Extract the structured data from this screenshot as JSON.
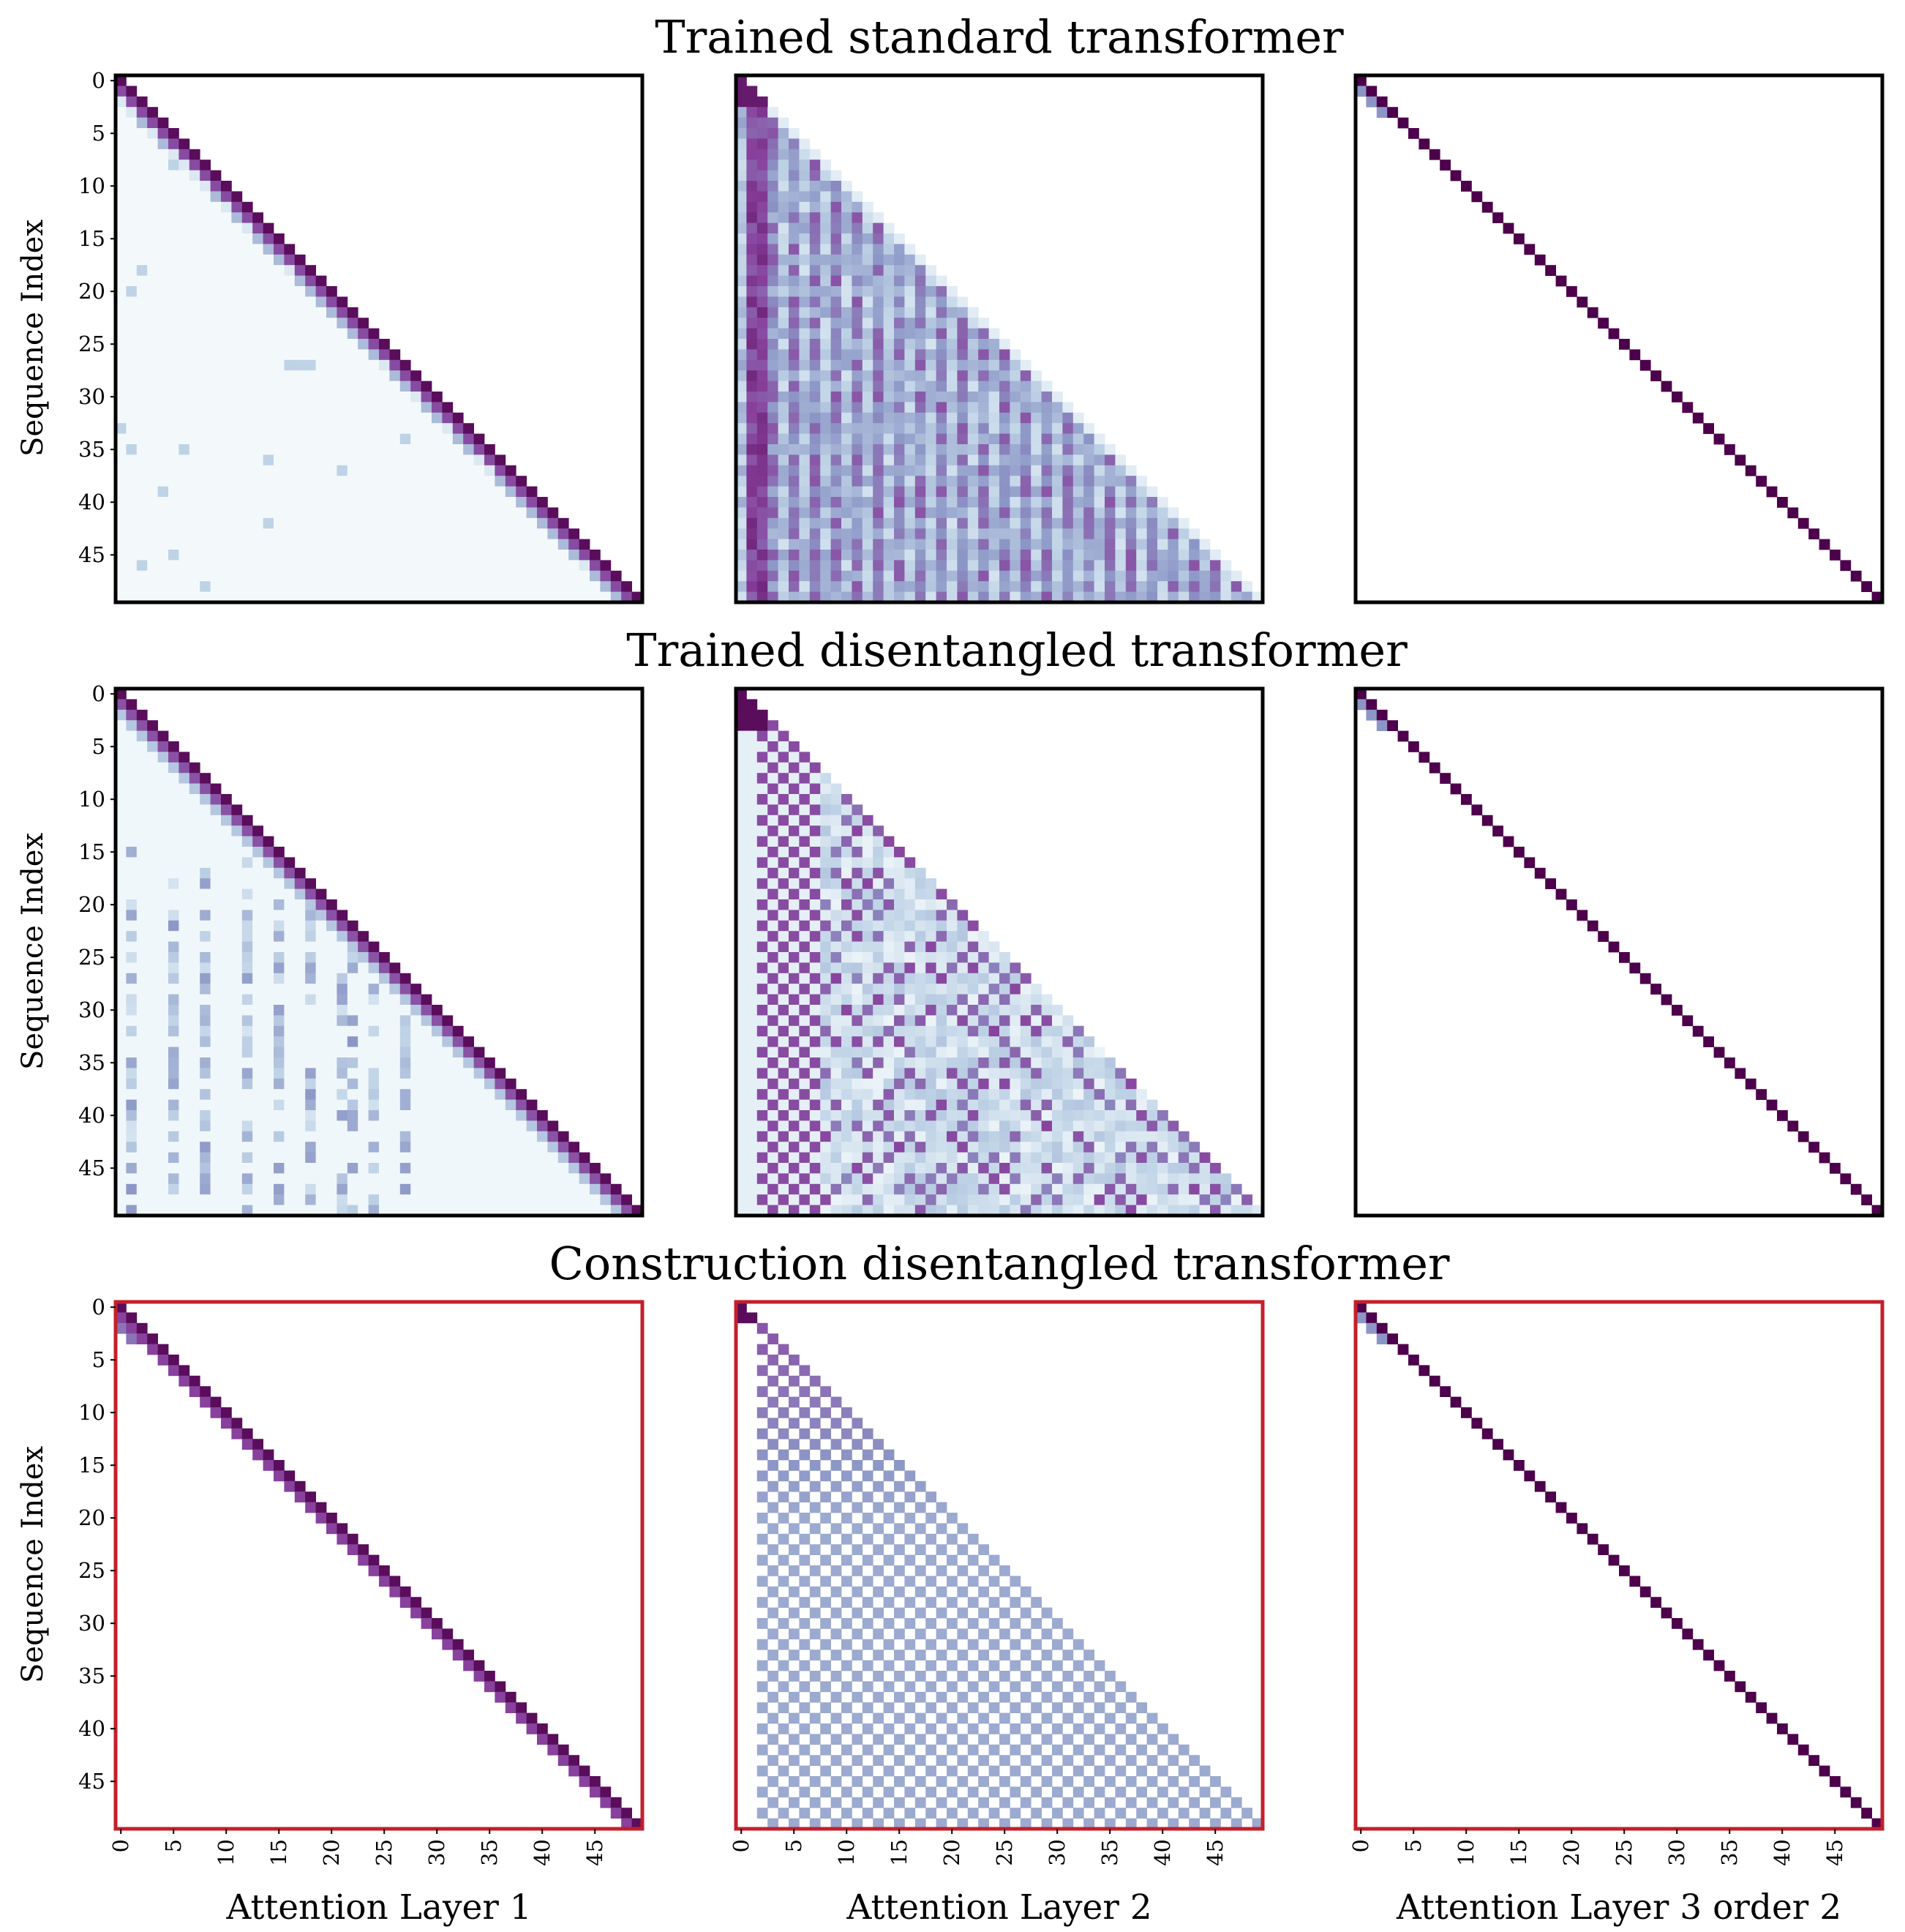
{
  "chart_data": {
    "type": "heatmap",
    "rows": [
      {
        "title": "Trained standard transformer",
        "frame_color": "#000000"
      },
      {
        "title": "Trained disentangled transformer",
        "frame_color": "#000000"
      },
      {
        "title": "Construction disentangled transformer",
        "frame_color": "#c3202b"
      }
    ],
    "columns": [
      {
        "xlabel": "Attention Layer 1"
      },
      {
        "xlabel": "Attention Layer 2"
      },
      {
        "xlabel": "Attention Layer 3 order 2"
      }
    ],
    "ylabel": "Sequence Index",
    "matrix_size": 50,
    "yticks": [
      0,
      5,
      10,
      15,
      20,
      25,
      30,
      35,
      40,
      45
    ],
    "xticks": [
      0,
      5,
      10,
      15,
      20,
      25,
      30,
      35,
      40,
      45
    ],
    "colormap": "BuPu",
    "colormap_stops": [
      "#f7fcfd",
      "#bfd3e6",
      "#8c96c6",
      "#88419d",
      "#4d004b"
    ],
    "value_range": [
      0,
      1
    ],
    "patterns": [
      [
        "diagonal-band-with-faint-lower",
        "column-stripes-triangle",
        "sharp-diagonal"
      ],
      [
        "diagonal-band-with-scattered-lower",
        "checker-stripes-triangle",
        "sharp-diagonal"
      ],
      [
        "clean-diagonal-band",
        "uniform-checkerboard-triangle",
        "sharp-diagonal"
      ]
    ]
  }
}
